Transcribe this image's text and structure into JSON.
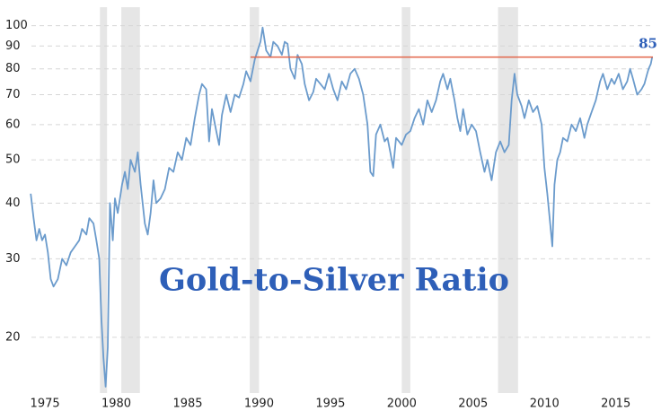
{
  "chart_data": {
    "type": "line",
    "title": "Gold-to-Silver Ratio",
    "x": [
      1974.0,
      1974.2,
      1974.4,
      1974.6,
      1974.8,
      1975.0,
      1975.2,
      1975.4,
      1975.6,
      1975.9,
      1976.2,
      1976.5,
      1976.8,
      1977.1,
      1977.4,
      1977.6,
      1977.9,
      1978.1,
      1978.4,
      1978.6,
      1978.8,
      1978.95,
      1979.1,
      1979.25,
      1979.4,
      1979.55,
      1979.75,
      1979.9,
      1980.1,
      1980.4,
      1980.6,
      1980.8,
      1981.0,
      1981.3,
      1981.5,
      1981.7,
      1982.0,
      1982.2,
      1982.4,
      1982.6,
      1982.8,
      1983.1,
      1983.4,
      1983.7,
      1984.0,
      1984.3,
      1984.6,
      1984.9,
      1985.2,
      1985.5,
      1985.8,
      1986.0,
      1986.3,
      1986.5,
      1986.7,
      1987.0,
      1987.2,
      1987.4,
      1987.7,
      1988.0,
      1988.3,
      1988.6,
      1988.9,
      1989.1,
      1989.4,
      1989.7,
      1989.9,
      1990.1,
      1990.25,
      1990.5,
      1990.8,
      1991.0,
      1991.3,
      1991.6,
      1991.8,
      1992.0,
      1992.2,
      1992.5,
      1992.7,
      1993.0,
      1993.2,
      1993.5,
      1993.8,
      1994.0,
      1994.3,
      1994.6,
      1994.9,
      1995.2,
      1995.5,
      1995.8,
      1996.1,
      1996.4,
      1996.7,
      1997.0,
      1997.3,
      1997.6,
      1997.8,
      1998.0,
      1998.2,
      1998.5,
      1998.8,
      1999.0,
      1999.2,
      1999.4,
      1999.6,
      1999.8,
      2000.0,
      2000.3,
      2000.6,
      2000.9,
      2001.2,
      2001.5,
      2001.8,
      2002.1,
      2002.4,
      2002.7,
      2002.9,
      2003.2,
      2003.4,
      2003.7,
      2003.9,
      2004.1,
      2004.3,
      2004.6,
      2004.9,
      2005.2,
      2005.5,
      2005.8,
      2006.0,
      2006.3,
      2006.6,
      2006.9,
      2007.2,
      2007.5,
      2007.7,
      2007.9,
      2008.1,
      2008.4,
      2008.6,
      2008.9,
      2009.2,
      2009.5,
      2009.8,
      2010.0,
      2010.2,
      2010.4,
      2010.55,
      2010.7,
      2010.9,
      2011.1,
      2011.3,
      2011.6,
      2011.9,
      2012.2,
      2012.5,
      2012.8,
      2013.0,
      2013.3,
      2013.6,
      2013.9,
      2014.1,
      2014.4,
      2014.7,
      2014.9,
      2015.2,
      2015.5,
      2015.8,
      2016.0,
      2016.2,
      2016.5,
      2016.8,
      2017.0,
      2017.2,
      2017.3,
      2017.45,
      2017.55
    ],
    "values": [
      42,
      37,
      33,
      35,
      33,
      34,
      31,
      27,
      26,
      27,
      30,
      29,
      31,
      32,
      33,
      35,
      34,
      37,
      36,
      33,
      30,
      22,
      18,
      15.5,
      19,
      40,
      33,
      41,
      38,
      44,
      47,
      43,
      50,
      47,
      52,
      44,
      36,
      34,
      38,
      45,
      40,
      41,
      43,
      48,
      47,
      52,
      50,
      56,
      54,
      62,
      70,
      74,
      72,
      55,
      65,
      58,
      54,
      63,
      70,
      64,
      70,
      69,
      74,
      79,
      75,
      84,
      88,
      92,
      99,
      88,
      85,
      92,
      90,
      86,
      92,
      91,
      80,
      76,
      86,
      82,
      74,
      68,
      71,
      76,
      74,
      72,
      78,
      72,
      68,
      75,
      72,
      78,
      80,
      76,
      70,
      60,
      47,
      46,
      57,
      60,
      55,
      56,
      52,
      48,
      56,
      55,
      54,
      57,
      58,
      62,
      65,
      60,
      68,
      64,
      68,
      75,
      78,
      72,
      76,
      68,
      62,
      58,
      65,
      57,
      60,
      58,
      52,
      47,
      50,
      45,
      52,
      55,
      52,
      54,
      68,
      78,
      70,
      66,
      62,
      68,
      64,
      66,
      60,
      48,
      42,
      36,
      32,
      44,
      50,
      52,
      56,
      55,
      60,
      58,
      62,
      56,
      60,
      64,
      68,
      75,
      78,
      72,
      76,
      74,
      78,
      72,
      75,
      80,
      76,
      70,
      72,
      74,
      78,
      80,
      82,
      85
    ],
    "color": "#6b9bcc",
    "log_scale": true,
    "xlim": [
      1974.05,
      2017.6
    ],
    "xticks": [
      1975,
      1980,
      1985,
      1990,
      1995,
      2000,
      2005,
      2010,
      2015
    ],
    "ylim": [
      15,
      110
    ],
    "yticks": [
      20,
      30,
      40,
      50,
      60,
      70,
      80,
      90,
      100
    ],
    "grid": true,
    "recessions": [
      [
        1978.85,
        1979.35
      ],
      [
        1980.35,
        1981.65
      ],
      [
        1989.35,
        1990.0
      ],
      [
        2000.0,
        2000.6
      ],
      [
        2006.75,
        2008.15
      ]
    ],
    "reference_line": {
      "value": 85,
      "start": 1989.4,
      "color": "#e2654a",
      "label_color": "#2e5fb8"
    }
  }
}
